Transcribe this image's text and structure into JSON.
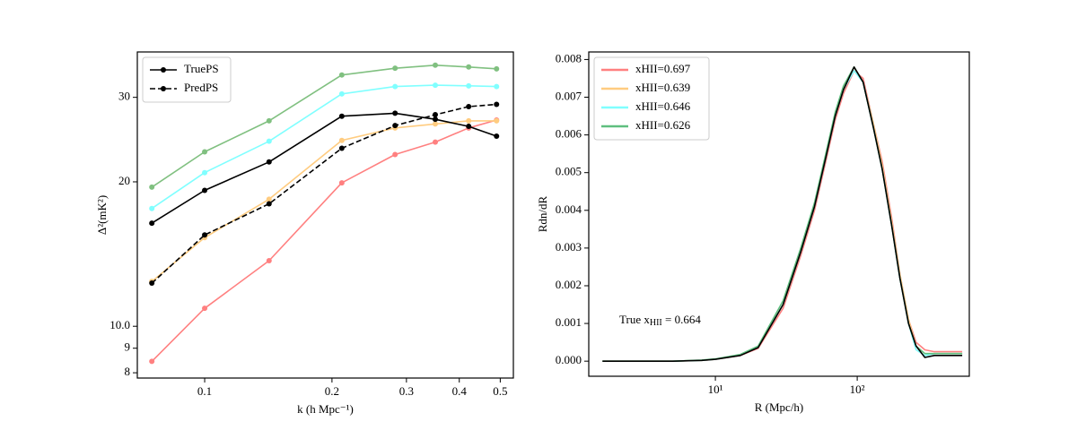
{
  "chart_data": [
    {
      "type": "line",
      "xlabel": "k (h Mpc⁻¹)",
      "ylabel": "Δ²(mK²)",
      "xlog": true,
      "ylog": true,
      "markers": true,
      "legend": "upper left",
      "x": [
        0.075,
        0.1,
        0.142,
        0.211,
        0.282,
        0.351,
        0.421,
        0.49
      ],
      "xlim": [
        0.0693,
        0.537
      ],
      "ylim": [
        7.8,
        37.3
      ],
      "xticks": [
        0.1,
        0.2,
        0.3,
        0.4,
        0.5
      ],
      "yticks": [
        8,
        9,
        {
          "value": 10,
          "label": "10.0"
        },
        20,
        30
      ],
      "series": [
        {
          "color": "#ff8080",
          "values": [
            8.45,
            10.9,
            13.7,
            19.9,
            22.8,
            24.2,
            25.9,
            26.9
          ]
        },
        {
          "color": "#ffcc80",
          "values": [
            12.4,
            15.3,
            18.4,
            24.4,
            25.9,
            26.4,
            26.8,
            26.8
          ]
        },
        {
          "color": "#80ffff",
          "values": [
            17.6,
            20.9,
            24.3,
            30.5,
            31.6,
            31.8,
            31.7,
            31.6
          ]
        },
        {
          "color": "#80c080",
          "values": [
            19.5,
            23.1,
            26.8,
            33.4,
            34.5,
            35.0,
            34.7,
            34.4
          ]
        },
        {
          "name": "TruePS",
          "color": "#000000",
          "values": [
            16.4,
            19.2,
            22.0,
            27.4,
            27.8,
            27.0,
            26.1,
            24.9
          ]
        },
        {
          "name": "PredPS",
          "color": "#000000",
          "dash": true,
          "values": [
            12.3,
            15.5,
            18.0,
            23.5,
            26.2,
            27.6,
            28.7,
            29.0
          ]
        }
      ]
    },
    {
      "type": "line",
      "xlabel": "R (Mpc/h)",
      "ylabel": "Rdn/dR",
      "xlog": true,
      "ylog": false,
      "markers": false,
      "legend": "upper left",
      "annotation": {
        "text": "True x",
        "sub": "HII",
        "after": " = 0.664"
      },
      "x": [
        1.6,
        3,
        5,
        8,
        10,
        15,
        20,
        30,
        40,
        50,
        60,
        70,
        80,
        95,
        110,
        130,
        150,
        175,
        200,
        230,
        260,
        300,
        350,
        450,
        550
      ],
      "xlim": [
        1.28,
        617
      ],
      "ylim": [
        -0.0004,
        0.0082
      ],
      "xticks": [
        {
          "value": 10,
          "label": "10¹"
        },
        {
          "value": 100,
          "label": "10²"
        }
      ],
      "yticks": [
        {
          "value": 0,
          "label": "0.000"
        },
        0.001,
        0.002,
        0.003,
        0.004,
        0.005,
        0.006,
        0.007,
        0.008
      ],
      "series": [
        {
          "name": "xHII=0.697",
          "color": "#ff8080",
          "values": [
            0,
            0,
            0,
            2e-05,
            5e-05,
            0.00015,
            0.00034,
            0.0014,
            0.0028,
            0.004,
            0.0053,
            0.0064,
            0.0071,
            0.0077,
            0.0075,
            0.0063,
            0.0053,
            0.0038,
            0.0023,
            0.0011,
            0.0005,
            0.0003,
            0.00025,
            0.00025,
            0.00025
          ]
        },
        {
          "name": "xHII=0.639",
          "color": "#ffcc80",
          "values": [
            0,
            0,
            0,
            2e-05,
            5e-05,
            0.00016,
            0.00037,
            0.0015,
            0.0029,
            0.0041,
            0.0054,
            0.0065,
            0.0072,
            0.0078,
            0.0074,
            0.0063,
            0.0052,
            0.0037,
            0.0023,
            0.0011,
            0.0004,
            0.0002,
            0.0002,
            0.0002,
            0.0002
          ]
        },
        {
          "name": "xHII=0.646",
          "color": "#80ffff",
          "values": [
            0,
            0,
            0,
            2e-05,
            5e-05,
            0.00016,
            0.00037,
            0.0015,
            0.0029,
            0.0041,
            0.0054,
            0.0065,
            0.0072,
            0.0077,
            0.0074,
            0.0062,
            0.0051,
            0.0036,
            0.0022,
            0.001,
            0.0003,
            0.00015,
            0.0002,
            0.0002,
            0.0002
          ]
        },
        {
          "name": "xHII=0.626",
          "color": "#5fbf7f",
          "values": [
            0,
            0,
            0,
            3e-05,
            6e-05,
            0.00018,
            0.0004,
            0.0016,
            0.003,
            0.0042,
            0.0055,
            0.0066,
            0.0073,
            0.0078,
            0.0074,
            0.0062,
            0.0051,
            0.0036,
            0.0022,
            0.001,
            0.0004,
            0.0002,
            0.0002,
            0.0002,
            0.0002
          ]
        },
        {
          "color": "#000000",
          "values": [
            0,
            0,
            0,
            2e-05,
            5e-05,
            0.00015,
            0.00036,
            0.0015,
            0.0029,
            0.0041,
            0.0054,
            0.0065,
            0.0072,
            0.0078,
            0.0074,
            0.0062,
            0.0051,
            0.0036,
            0.0022,
            0.001,
            0.0004,
            0.0001,
            0.00015,
            0.00015,
            0.00015
          ]
        }
      ]
    }
  ]
}
